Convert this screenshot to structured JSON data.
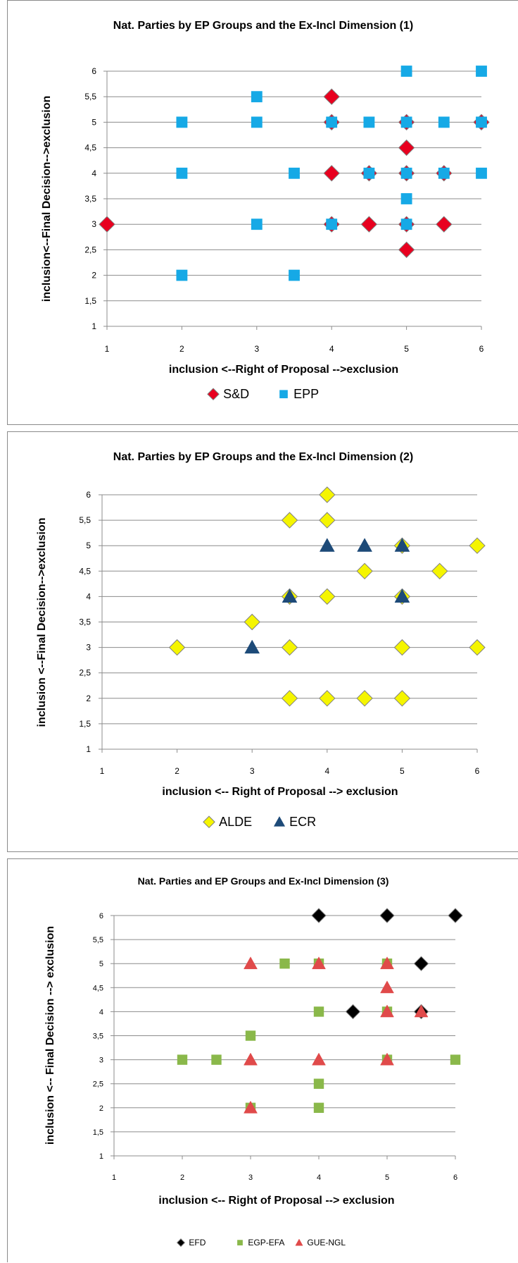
{
  "colors": {
    "sd": "#e8001f",
    "epp": "#16a9e6",
    "alde": "#f5f500",
    "ecr": "#1d4a78",
    "efd": "#000000",
    "egp_efa": "#8ab84a",
    "gue_ngl": "#e04a4a",
    "grid": "#8c8c8c",
    "axis": "#8c8c8c",
    "text": "#000000"
  },
  "chart_data": [
    {
      "type": "scatter",
      "title": "Nat. Parties by EP Groups and the Ex-Incl Dimension (1)",
      "xlabel": "inclusion <--Right of Proposal -->exclusion",
      "ylabel": "inclusion<--Final Decision-->exclusion",
      "xlim": [
        1,
        6
      ],
      "ylim": [
        1,
        6
      ],
      "x_ticks": [
        "1",
        "2",
        "3",
        "4",
        "5",
        "6"
      ],
      "y_ticks": [
        "1",
        "1,5",
        "2",
        "2,5",
        "3",
        "3,5",
        "4",
        "4,5",
        "5",
        "5,5",
        "6"
      ],
      "grid": "horizontal",
      "legend_position": "bottom",
      "series": [
        {
          "name": "S&D",
          "marker": "diamond",
          "color_key": "sd",
          "points": [
            [
              4,
              5.5
            ],
            [
              4,
              5
            ],
            [
              5,
              5
            ],
            [
              6,
              5
            ],
            [
              5,
              4.5
            ],
            [
              4,
              4
            ],
            [
              4.5,
              4
            ],
            [
              5,
              4
            ],
            [
              5.5,
              4
            ],
            [
              1,
              3
            ],
            [
              4,
              3
            ],
            [
              4.5,
              3
            ],
            [
              5,
              3
            ],
            [
              5.5,
              3
            ],
            [
              5,
              2.5
            ]
          ]
        },
        {
          "name": "EPP",
          "marker": "square",
          "color_key": "epp",
          "points": [
            [
              5,
              6
            ],
            [
              6,
              6
            ],
            [
              3,
              5.5
            ],
            [
              2,
              5
            ],
            [
              3,
              5
            ],
            [
              4,
              5
            ],
            [
              4.5,
              5
            ],
            [
              5,
              5
            ],
            [
              5.5,
              5
            ],
            [
              6,
              5
            ],
            [
              2,
              4
            ],
            [
              3.5,
              4
            ],
            [
              4.5,
              4
            ],
            [
              5,
              4
            ],
            [
              5.5,
              4
            ],
            [
              6,
              4
            ],
            [
              5,
              3.5
            ],
            [
              3,
              3
            ],
            [
              4,
              3
            ],
            [
              5,
              3
            ],
            [
              2,
              2
            ],
            [
              3.5,
              2
            ]
          ]
        }
      ]
    },
    {
      "type": "scatter",
      "title": "Nat. Parties by EP Groups and the Ex-Incl Dimension (2)",
      "xlabel": "inclusion <-- Right of Proposal --> exclusion",
      "ylabel": "inclusion <--Final Decision-->exclusion",
      "xlim": [
        1,
        6
      ],
      "ylim": [
        1,
        6
      ],
      "x_ticks": [
        "1",
        "2",
        "3",
        "4",
        "5",
        "6"
      ],
      "y_ticks": [
        "1",
        "1,5",
        "2",
        "2,5",
        "3",
        "3,5",
        "4",
        "4,5",
        "5",
        "5,5",
        "6"
      ],
      "grid": "horizontal",
      "legend_position": "bottom",
      "series": [
        {
          "name": "ALDE",
          "marker": "diamond",
          "color_key": "alde",
          "points": [
            [
              4,
              6
            ],
            [
              3.5,
              5.5
            ],
            [
              4,
              5.5
            ],
            [
              5,
              5
            ],
            [
              6,
              5
            ],
            [
              4.5,
              4.5
            ],
            [
              5.5,
              4.5
            ],
            [
              3.5,
              4
            ],
            [
              4,
              4
            ],
            [
              5,
              4
            ],
            [
              3,
              3.5
            ],
            [
              2,
              3
            ],
            [
              3.5,
              3
            ],
            [
              5,
              3
            ],
            [
              6,
              3
            ],
            [
              3.5,
              2
            ],
            [
              4,
              2
            ],
            [
              4.5,
              2
            ],
            [
              5,
              2
            ]
          ]
        },
        {
          "name": "ECR",
          "marker": "triangle",
          "color_key": "ecr",
          "points": [
            [
              4,
              5
            ],
            [
              4.5,
              5
            ],
            [
              5,
              5
            ],
            [
              3.5,
              4
            ],
            [
              5,
              4
            ],
            [
              3,
              3
            ]
          ]
        }
      ]
    },
    {
      "type": "scatter",
      "title": "Nat. Parties and EP Groups and Ex-Incl Dimension (3)",
      "xlabel": "inclusion <-- Right of Proposal --> exclusion",
      "ylabel": "inclusion <-- Final Decision --> exclusion",
      "xlim": [
        1,
        6
      ],
      "ylim": [
        1,
        6
      ],
      "x_ticks": [
        "1",
        "2",
        "3",
        "4",
        "5",
        "6"
      ],
      "y_ticks": [
        "1",
        "1,5",
        "2",
        "2,5",
        "3",
        "3,5",
        "4",
        "4,5",
        "5",
        "5,5",
        "6"
      ],
      "grid": "horizontal",
      "legend_position": "bottom",
      "series": [
        {
          "name": "EFD",
          "marker": "diamond",
          "color_key": "efd",
          "points": [
            [
              4,
              6
            ],
            [
              5,
              6
            ],
            [
              6,
              6
            ],
            [
              5.5,
              5
            ],
            [
              4.5,
              4
            ],
            [
              5.5,
              4
            ]
          ]
        },
        {
          "name": "EGP-EFA",
          "marker": "square",
          "color_key": "egp_efa",
          "points": [
            [
              3.5,
              5
            ],
            [
              4,
              5
            ],
            [
              5,
              5
            ],
            [
              4,
              4
            ],
            [
              5,
              4
            ],
            [
              3,
              3.5
            ],
            [
              2,
              3
            ],
            [
              2.5,
              3
            ],
            [
              5,
              3
            ],
            [
              6,
              3
            ],
            [
              4,
              2.5
            ],
            [
              3,
              2
            ],
            [
              4,
              2
            ]
          ]
        },
        {
          "name": "GUE-NGL",
          "marker": "triangle",
          "color_key": "gue_ngl",
          "points": [
            [
              3,
              5
            ],
            [
              4,
              5
            ],
            [
              5,
              5
            ],
            [
              5,
              4.5
            ],
            [
              5,
              4
            ],
            [
              5.5,
              4
            ],
            [
              3,
              3
            ],
            [
              4,
              3
            ],
            [
              5,
              3
            ],
            [
              3,
              2
            ]
          ]
        }
      ]
    }
  ]
}
